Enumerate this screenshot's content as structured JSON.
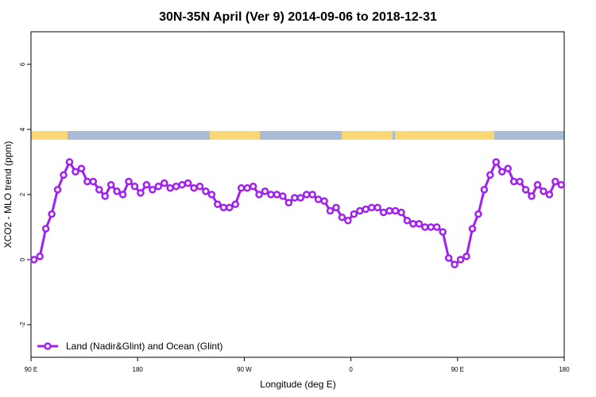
{
  "chart_data": {
    "type": "line",
    "title": "30N-35N April (Ver 9)   2014-09-06 to 2018-12-31",
    "x_label": "Longitude (deg E)",
    "y_label": "XCO2 - MLO trend (ppm)",
    "xlim": [
      90,
      540
    ],
    "ylim": [
      -3,
      7
    ],
    "xticks": [
      {
        "value": 90,
        "label": "90 E"
      },
      180,
      {
        "value": 270,
        "label": "90 W"
      },
      {
        "value": 360,
        "label": "0"
      },
      {
        "value": 450,
        "label": "90 E"
      },
      {
        "value": 540,
        "label": "180"
      }
    ],
    "yticks": [
      -2,
      0,
      2,
      4,
      6
    ],
    "legend_position": "bottom-left",
    "x": [
      92.5,
      97.5,
      102.5,
      107.5,
      112.5,
      117.5,
      122.5,
      127.5,
      132.5,
      137.5,
      142.5,
      147.5,
      152.5,
      157.5,
      162.5,
      167.5,
      172.5,
      177.5,
      182.5,
      187.5,
      192.5,
      197.5,
      202.5,
      207.5,
      212.5,
      217.5,
      222.5,
      227.5,
      232.5,
      237.5,
      242.5,
      247.5,
      252.5,
      257.5,
      262.5,
      267.5,
      272.5,
      277.5,
      282.5,
      287.5,
      292.5,
      297.5,
      302.5,
      307.5,
      312.5,
      317.5,
      322.5,
      327.5,
      332.5,
      337.5,
      342.5,
      347.5,
      352.5,
      357.5,
      362.5,
      367.5,
      372.5,
      377.5,
      382.5,
      387.5,
      392.5,
      397.5,
      402.5,
      407.5,
      412.5,
      417.5,
      422.5,
      427.5,
      432.5,
      437.5,
      442.5,
      447.5,
      452.5,
      457.5,
      462.5,
      467.5,
      472.5,
      477.5,
      482.5,
      487.5,
      492.5,
      497.5,
      502.5,
      507.5,
      512.5,
      517.5,
      522.5,
      527.5,
      532.5,
      537.5
    ],
    "series": [
      {
        "name": "Land (Nadir&Glint) and Ocean (Glint)",
        "color": "#a020f0",
        "values": [
          0.0,
          0.1,
          0.95,
          1.4,
          2.15,
          2.6,
          3.0,
          2.7,
          2.8,
          2.4,
          2.4,
          2.15,
          1.95,
          2.3,
          2.1,
          2.0,
          2.4,
          2.25,
          2.05,
          2.3,
          2.15,
          2.25,
          2.35,
          2.2,
          2.25,
          2.3,
          2.35,
          2.2,
          2.25,
          2.1,
          2.0,
          1.7,
          1.6,
          1.6,
          1.7,
          2.2,
          2.2,
          2.25,
          2.0,
          2.1,
          2.0,
          2.0,
          1.95,
          1.75,
          1.9,
          1.9,
          2.0,
          2.0,
          1.85,
          1.8,
          1.5,
          1.6,
          1.3,
          1.2,
          1.4,
          1.5,
          1.55,
          1.6,
          1.6,
          1.45,
          1.5,
          1.5,
          1.45,
          1.2,
          1.1,
          1.1,
          1.0,
          1.0,
          1.0,
          0.85,
          0.05,
          -0.15,
          0.0,
          0.1,
          0.95,
          1.4,
          2.15,
          2.6,
          3.0,
          2.7,
          2.8,
          2.4,
          2.4,
          2.15,
          1.95,
          2.3,
          2.1,
          2.0,
          2.4,
          2.3
        ]
      }
    ]
  }
}
